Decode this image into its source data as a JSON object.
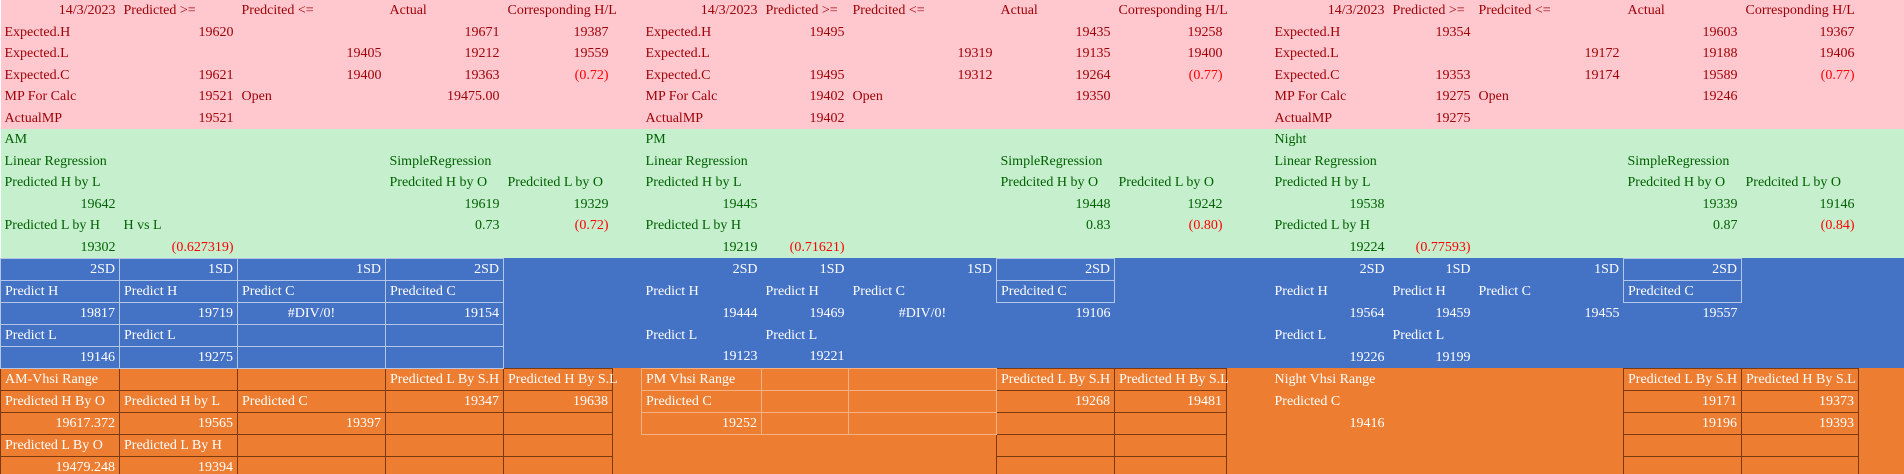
{
  "rows": [
    [
      "14/3/2023",
      "Predicted >=",
      "Predcited <=",
      "Actual",
      "Corresponding H/L",
      null,
      "14/3/2023",
      "Predicted >=",
      "Predcited <=",
      "Actual",
      "Corresponding H/L",
      null,
      "14/3/2023",
      "Predicted >=",
      "Predcited <=",
      "Actual",
      "Corresponding H/L",
      null
    ],
    [
      "Expected.H",
      "19620",
      null,
      "19671",
      "19387",
      null,
      "Expected.H",
      "19495",
      null,
      "19435",
      "19258",
      null,
      "Expected.H",
      "19354",
      null,
      "19603",
      "19367",
      null
    ],
    [
      "Expected.L",
      null,
      "19405",
      "19212",
      "19559",
      null,
      "Expected.L",
      null,
      "19319",
      "19135",
      "19400",
      null,
      "Expected.L",
      null,
      "19172",
      "19188",
      "19406",
      null
    ],
    [
      "Expected.C",
      "19621",
      "19400",
      "19363",
      "(0.72)",
      null,
      "Expected.C",
      "19495",
      "19312",
      "19264",
      "(0.77)",
      null,
      "Expected.C",
      "19353",
      "19174",
      "19589",
      "(0.77)",
      null
    ],
    [
      "MP For Calc",
      "19521",
      "Open",
      "19475.00",
      null,
      null,
      "MP For Calc",
      "19402",
      "Open",
      "19350",
      null,
      null,
      "MP For Calc",
      "19275",
      "Open",
      "19246",
      null,
      null
    ],
    [
      "ActualMP",
      "19521",
      null,
      null,
      null,
      null,
      "ActualMP",
      "19402",
      null,
      null,
      null,
      null,
      "ActualMP",
      "19275",
      null,
      null,
      null,
      null
    ],
    [
      "AM",
      null,
      null,
      null,
      null,
      null,
      "PM",
      null,
      null,
      null,
      null,
      null,
      "Night",
      null,
      null,
      null,
      null,
      null
    ],
    [
      "Linear Regression",
      null,
      null,
      "SimpleRegression",
      null,
      null,
      "Linear Regression",
      null,
      null,
      "SimpleRegression",
      null,
      null,
      "Linear Regression",
      null,
      null,
      "SimpleRegression",
      null,
      null
    ],
    [
      "Predicted H by L",
      null,
      null,
      "Predcited H by O",
      "Predcited L by O",
      null,
      "Predicted H by L",
      null,
      null,
      "Predcited H by O",
      "Predcited L by O",
      null,
      "Predicted H by L",
      null,
      null,
      "Predcited H by O",
      "Predcited L by O",
      null
    ],
    [
      "19642",
      null,
      null,
      "19619",
      "19329",
      null,
      "19445",
      null,
      null,
      "19448",
      "19242",
      null,
      "19538",
      null,
      null,
      "19339",
      "19146",
      null
    ],
    [
      "Predicted L by H",
      "H vs L",
      null,
      "0.73",
      "(0.72)",
      null,
      "Predicted L by H",
      null,
      null,
      "0.83",
      "(0.80)",
      null,
      "Predicted L by H",
      null,
      null,
      "0.87",
      "(0.84)",
      null
    ],
    [
      "19302",
      "(0.627319)",
      null,
      null,
      null,
      null,
      "19219",
      "(0.71621)",
      null,
      null,
      null,
      null,
      "19224",
      "(0.77593)",
      null,
      null,
      null,
      null
    ],
    [
      "2SD",
      "1SD",
      "1SD",
      "2SD",
      null,
      null,
      "2SD",
      "1SD",
      "1SD",
      "2SD",
      null,
      null,
      "2SD",
      "1SD",
      "1SD",
      "2SD",
      null,
      null
    ],
    [
      "Predict H",
      "Predict H",
      "Predict C",
      "Predcited C",
      null,
      null,
      "Predict H",
      "Predict H",
      "Predict C",
      "Predcited C",
      null,
      null,
      "Predict H",
      "Predict H",
      "Predict C",
      "Predcited C",
      null,
      null
    ],
    [
      "19817",
      "19719",
      "#DIV/0!",
      "19154",
      null,
      null,
      "19444",
      "19469",
      "#DIV/0!",
      "19106",
      null,
      null,
      "19564",
      "19459",
      "19455",
      "19557",
      null,
      null
    ],
    [
      "Predict L",
      "Predict L",
      null,
      null,
      null,
      null,
      "Predict L",
      "Predict L",
      null,
      null,
      null,
      null,
      "Predict L",
      "Predict L",
      null,
      null,
      null,
      null
    ],
    [
      "19146",
      "19275",
      null,
      null,
      null,
      null,
      "19123",
      "19221",
      null,
      null,
      null,
      null,
      "19226",
      "19199",
      null,
      null,
      null,
      null
    ],
    [
      "AM-Vhsi Range",
      null,
      null,
      "Predicted L By S.H",
      "Predicted H By S.L",
      null,
      "PM Vhsi Range",
      null,
      null,
      "Predicted L By S.H",
      "Predicted H By S.L",
      null,
      "Night Vhsi Range",
      null,
      null,
      "Predicted L By S.H",
      "Predicted H By S.L",
      null
    ],
    [
      "Predicted H By O",
      "Predicted H by L",
      "Predicted C",
      "19347",
      "19638",
      null,
      "Predicted C",
      null,
      null,
      "19268",
      "19481",
      null,
      "Predicted C",
      null,
      null,
      "19171",
      "19373",
      null
    ],
    [
      "19617.372",
      "19565",
      "19397",
      null,
      null,
      null,
      "19252",
      null,
      null,
      null,
      null,
      null,
      "19416",
      null,
      null,
      "19196",
      "19393",
      null
    ],
    [
      "Predicted L By O",
      "Predicted L By H",
      null,
      null,
      null,
      null,
      null,
      null,
      null,
      null,
      null,
      null,
      null,
      null,
      null,
      null,
      null,
      null
    ],
    [
      "19479.248",
      "19394",
      null,
      null,
      null,
      null,
      null,
      null,
      null,
      null,
      null,
      null,
      null,
      null,
      null,
      null,
      null,
      null
    ]
  ]
}
